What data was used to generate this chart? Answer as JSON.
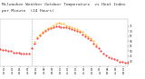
{
  "title1": "Milwaukee Weather Outdoor Temperature",
  "title2": "vs Heat Index",
  "title3": "per Minute",
  "title4": "(24 Hours)",
  "title_fontsize": 3.2,
  "bg_color": "#ffffff",
  "line1_color": "#ff0000",
  "line2_color": "#ffa500",
  "vline_color": "#888888",
  "ylim": [
    35,
    82
  ],
  "xlim": [
    0,
    1440
  ],
  "vline_x": 355,
  "ylabel_right_values": [
    75,
    70,
    65,
    60,
    55,
    50,
    45,
    40
  ],
  "x_ticks": [
    45,
    135,
    225,
    315,
    405,
    495,
    585,
    675,
    765,
    855,
    945,
    1035,
    1125,
    1215,
    1305,
    1395
  ],
  "x_tick_labels": [
    "01\n01",
    "02\n30",
    "04\n00",
    "05\n30",
    "07\n00",
    "08\n30",
    "09\n50",
    "11\n15",
    "12\n45",
    "02\n15",
    "03\n45",
    "05\n15",
    "06\n40",
    "08\n10",
    "09\n40",
    "11\n10"
  ],
  "temp_x": [
    0,
    30,
    60,
    90,
    120,
    150,
    180,
    210,
    240,
    270,
    300,
    330,
    360,
    390,
    420,
    450,
    480,
    510,
    540,
    570,
    600,
    630,
    660,
    690,
    720,
    750,
    780,
    810,
    840,
    870,
    900,
    930,
    960,
    990,
    1020,
    1050,
    1080,
    1110,
    1140,
    1170,
    1200,
    1230,
    1260,
    1290,
    1320,
    1350,
    1380,
    1410,
    1440
  ],
  "temp_y": [
    52,
    51,
    51,
    50,
    50,
    49,
    49,
    49,
    48,
    48,
    48,
    48,
    53,
    58,
    63,
    66,
    68,
    70,
    72,
    73,
    74,
    75,
    75,
    74,
    74,
    74,
    73,
    72,
    71,
    70,
    69,
    67,
    65,
    63,
    61,
    58,
    55,
    53,
    50,
    48,
    46,
    44,
    43,
    42,
    41,
    40,
    40,
    39,
    39
  ],
  "heat_x": [
    390,
    420,
    450,
    480,
    510,
    540,
    570,
    600,
    630,
    660,
    690,
    720,
    750,
    780,
    810,
    840,
    870,
    900,
    930,
    960,
    990,
    1020,
    1050,
    1080
  ],
  "heat_y": [
    59,
    64,
    67,
    69,
    71,
    73,
    74,
    76,
    77,
    78,
    77,
    77,
    76,
    75,
    74,
    73,
    72,
    70,
    69,
    67,
    65,
    63,
    60,
    57
  ]
}
